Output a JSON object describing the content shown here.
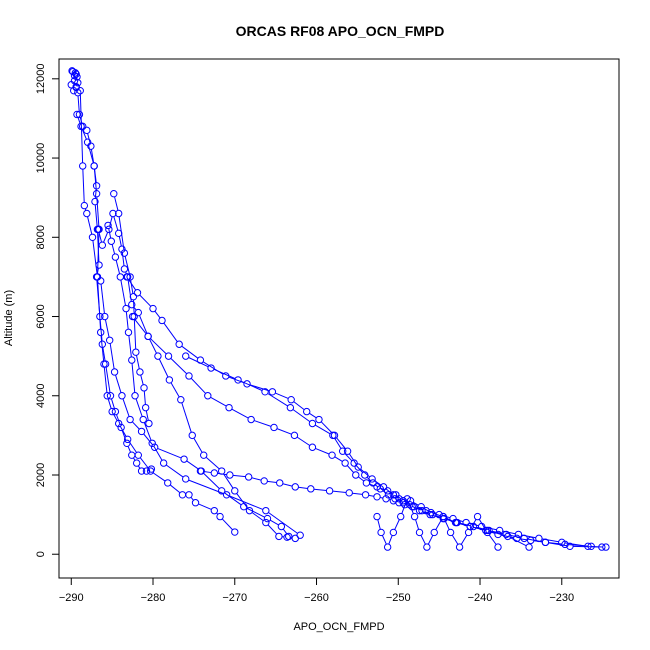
{
  "chart_data": {
    "type": "line",
    "title": "ORCAS RF08 APO_OCN_FMPD",
    "xlabel": "APO_OCN_FMPD",
    "ylabel": "Altitude (m)",
    "xlim": [
      -291.5,
      -223
    ],
    "ylim": [
      -600,
      12500
    ],
    "xticks": [
      -290,
      -280,
      -270,
      -260,
      -250,
      -240,
      -230
    ],
    "yticks": [
      0,
      2000,
      4000,
      6000,
      8000,
      10000,
      12000
    ],
    "color": "#0000ff",
    "marker": "open-circle",
    "series": [
      {
        "x": [
          -289.9,
          -289.5,
          -289.3,
          -289.6,
          -290.0,
          -289.4,
          -289.7,
          -289.2,
          -289.0,
          -288.6,
          -288.1,
          -287.6,
          -287.2,
          -286.9,
          -287.1,
          -286.8,
          -286.6,
          -286.9,
          -286.5,
          -286.2,
          -285.8,
          -285.2,
          -284.6,
          -283.9,
          -283.2,
          -282.6,
          -282.0,
          -281.4,
          -280.8,
          -280.2
        ],
        "y": [
          12200,
          12150,
          12050,
          11950,
          11850,
          11800,
          11700,
          11650,
          11100,
          10800,
          10700,
          10300,
          9800,
          9300,
          8900,
          8200,
          7300,
          7000,
          6000,
          5300,
          4800,
          4000,
          3600,
          3200,
          2800,
          2500,
          2300,
          2100,
          2100,
          2150
        ]
      },
      {
        "x": [
          -289.8,
          -289.4,
          -289.6,
          -289.2,
          -289.4,
          -288.9,
          -288.6,
          -288.4,
          -288.1,
          -287.4,
          -286.8,
          -286.4,
          -286.0,
          -285.6,
          -285.0,
          -284.2,
          -283.1,
          -281.8,
          -280.3,
          -278.2,
          -276.4,
          -275.6,
          -274.8,
          -272.5,
          -271.8,
          -270.0
        ],
        "y": [
          12180,
          12120,
          12080,
          11900,
          11780,
          11700,
          9800,
          8800,
          8600,
          8000,
          7000,
          5600,
          4800,
          4000,
          3600,
          3300,
          2900,
          2500,
          2100,
          1800,
          1500,
          1500,
          1300,
          1100,
          950,
          560
        ]
      },
      {
        "x": [
          -289.3,
          -288.8,
          -288.0,
          -287.2,
          -286.9,
          -286.6,
          -286.8,
          -286.4,
          -285.9,
          -285.3,
          -284.7,
          -283.8,
          -282.8,
          -281.4,
          -279.8,
          -276.2,
          -274.1,
          -271.6,
          -268.9,
          -266.0,
          -264.3,
          -263.4
        ],
        "y": [
          11100,
          10800,
          10400,
          9800,
          9100,
          8200,
          7000,
          6900,
          6000,
          5400,
          4600,
          4000,
          3400,
          3100,
          2700,
          2400,
          2100,
          1600,
          1200,
          900,
          700,
          450
        ]
      },
      {
        "x": [
          -286.7,
          -286.2,
          -285.4,
          -284.9,
          -284.2,
          -283.8,
          -283.5,
          -283.1,
          -282.6,
          -281.8,
          -280.6,
          -279.4,
          -278.0,
          -276.6,
          -275.2,
          -273.8,
          -271.6,
          -270.0,
          -268.2,
          -266.2,
          -264.6,
          -263.6,
          -262.6
        ],
        "y": [
          8200,
          7800,
          8200,
          8600,
          8100,
          7700,
          7200,
          7000,
          6300,
          6100,
          5500,
          5000,
          4400,
          3900,
          3000,
          2500,
          2100,
          1600,
          1100,
          800,
          450,
          430,
          400
        ]
      },
      {
        "x": [
          -285.5,
          -285.1,
          -284.6,
          -284.0,
          -283.3,
          -283.0,
          -282.6,
          -282.2,
          -281.2,
          -280.1,
          -278.7,
          -276.0,
          -271.0,
          -266.2,
          -262.0
        ],
        "y": [
          8300,
          7900,
          7500,
          7000,
          6200,
          5600,
          4900,
          4000,
          3400,
          2800,
          2300,
          1900,
          1500,
          1100,
          480
        ]
      },
      {
        "x": [
          -284.8,
          -284.2,
          -283.5,
          -282.8,
          -282.4,
          -282.3,
          -282.1,
          -281.6,
          -281.1,
          -280.9,
          -280.5
        ],
        "y": [
          9100,
          8600,
          7600,
          7000,
          6500,
          6000,
          5100,
          4600,
          4200,
          3700,
          3300
        ]
      },
      {
        "x": [
          -283.2,
          -281.9,
          -280.0,
          -278.9,
          -276.8,
          -274.2,
          -271.1,
          -268.5,
          -265.4,
          -263.1,
          -261.2,
          -259.7,
          -257.8,
          -256.2,
          -254.9,
          -253.2,
          -251.8,
          -250.6,
          -249.9,
          -248.5,
          -247.2,
          -246.0,
          -244.5,
          -243.0,
          -241.2,
          -239.3,
          -237.8,
          -235.5,
          -233.8,
          -232.0,
          -229.6,
          -226.4
        ],
        "y": [
          7000,
          6600,
          6200,
          5900,
          5300,
          4900,
          4500,
          4300,
          4100,
          3900,
          3600,
          3400,
          3000,
          2600,
          2200,
          1900,
          1700,
          1500,
          1400,
          1350,
          1200,
          1050,
          950,
          800,
          700,
          600,
          500,
          400,
          350,
          300,
          250,
          200
        ]
      },
      {
        "x": [
          -282.5,
          -280.6,
          -278.1,
          -275.6,
          -273.3,
          -270.7,
          -268.0,
          -265.2,
          -262.7,
          -260.5,
          -258.1,
          -256.5,
          -255.2,
          -253.9,
          -252.6,
          -251.3,
          -250.3,
          -249.4,
          -248.6,
          -247.4,
          -246.1,
          -244.5,
          -242.8,
          -240.8,
          -238.9,
          -236.8,
          -234.6,
          -232.0,
          -229.0,
          -225.1
        ],
        "y": [
          6000,
          5500,
          5000,
          4500,
          4000,
          3700,
          3400,
          3200,
          3000,
          2700,
          2500,
          2300,
          2000,
          1800,
          1700,
          1600,
          1500,
          1350,
          1250,
          1100,
          1000,
          900,
          800,
          700,
          600,
          500,
          400,
          300,
          200,
          180
        ]
      },
      {
        "x": [
          -276.0,
          -272.9,
          -269.6,
          -266.3,
          -263.2,
          -260.5,
          -258.0,
          -256.8,
          -255.4,
          -254.1,
          -253.1,
          -252.2,
          -251.2,
          -250.4,
          -249.4,
          -248.1,
          -246.6,
          -245.0,
          -243.3,
          -241.7,
          -239.8,
          -237.6,
          -235.3,
          -232.8,
          -230.0,
          -226.8,
          -224.6
        ],
        "y": [
          5000,
          4700,
          4400,
          4100,
          3700,
          3300,
          3000,
          2600,
          2300,
          2000,
          1800,
          1650,
          1500,
          1400,
          1300,
          1200,
          1100,
          1000,
          900,
          800,
          700,
          600,
          500,
          400,
          300,
          200,
          180
        ]
      },
      {
        "x": [
          -274.2,
          -272.5,
          -270.6,
          -268.3,
          -266.4,
          -264.5,
          -262.6,
          -260.7,
          -258.4,
          -256.0,
          -254.0,
          -252.6,
          -251.5,
          -250.6,
          -249.9,
          -249.2,
          -248.3,
          -247.1,
          -245.8,
          -244.4,
          -242.9,
          -241.2,
          -239.1,
          -236.6,
          -234.0
        ],
        "y": [
          2100,
          2050,
          2000,
          1950,
          1850,
          1800,
          1700,
          1650,
          1600,
          1550,
          1500,
          1450,
          1400,
          1350,
          1300,
          1250,
          1200,
          1100,
          1000,
          900,
          800,
          700,
          600,
          450,
          180
        ]
      },
      {
        "x": [
          -252.6,
          -252.1,
          -251.3,
          -250.6,
          -249.7,
          -248.9,
          -248.0,
          -247.4,
          -246.5,
          -245.6,
          -244.5,
          -243.6,
          -242.5,
          -241.4,
          -240.3,
          -239.1,
          -237.8
        ],
        "y": [
          950,
          550,
          180,
          550,
          950,
          1400,
          950,
          550,
          180,
          550,
          950,
          550,
          180,
          550,
          950,
          550,
          180
        ]
      }
    ]
  }
}
